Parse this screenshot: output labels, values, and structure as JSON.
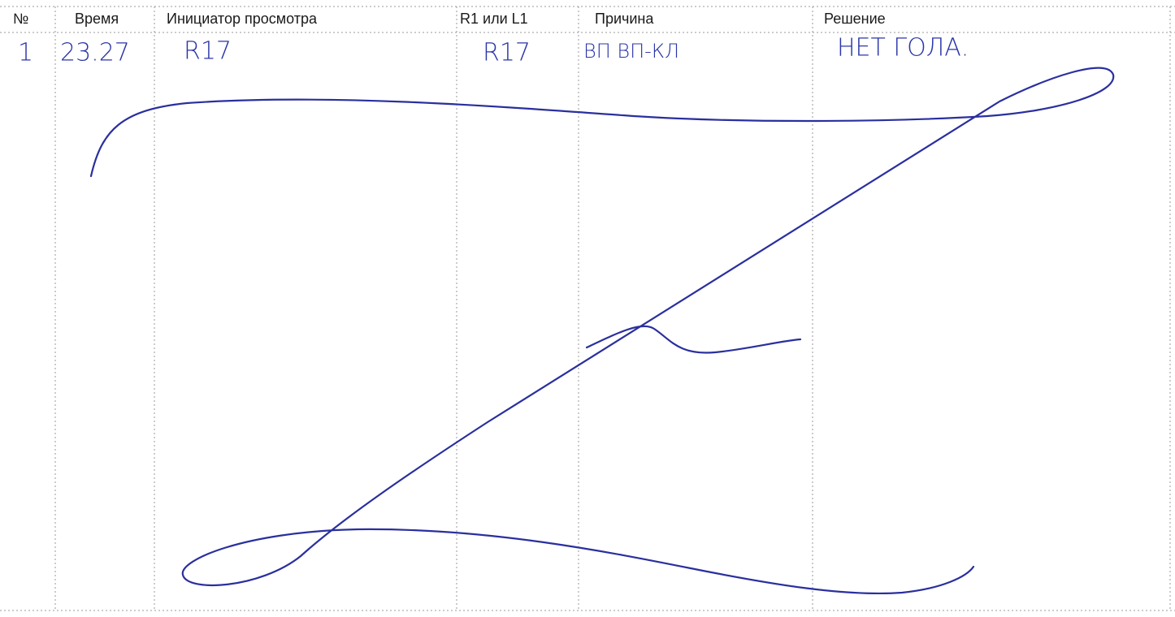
{
  "table": {
    "header": [
      "№",
      "Время",
      "Инициатор просмотра",
      "R1 или L1",
      "Причина",
      "Решение"
    ],
    "rows": [
      [
        "1",
        "23.27",
        "R17",
        "R17",
        "ВП ВП-КЛ",
        "НЕТ ГОЛА."
      ]
    ]
  }
}
